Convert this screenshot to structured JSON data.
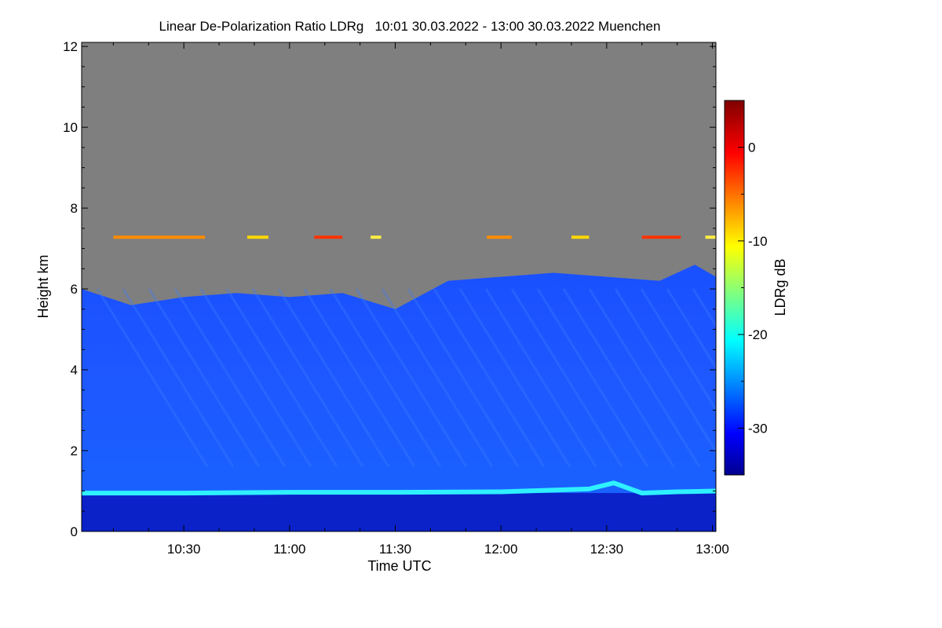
{
  "chart_data": {
    "type": "heatmap",
    "title": "Linear De-Polarization Ratio LDRg   10:01 30.03.2022 - 13:00 30.03.2022 Muenchen",
    "xlabel": "Time UTC",
    "ylabel": "Height km",
    "colorbar_label": "LDRg dB",
    "x_tick_labels": [
      "10:30",
      "11:00",
      "11:30",
      "12:00",
      "12:30",
      "13:00"
    ],
    "x_tick_values_min": [
      630,
      660,
      690,
      720,
      750,
      780
    ],
    "xlim_min": [
      601,
      781
    ],
    "y_ticks": [
      0,
      2,
      4,
      6,
      8,
      10,
      12
    ],
    "ylim": [
      0,
      12.1
    ],
    "colorbar_ticks": [
      0,
      -10,
      -20,
      -30
    ],
    "colorbar_range": [
      -35,
      5
    ],
    "no_data_color": "#7f7f7f",
    "features": {
      "top_of_signal_km": {
        "time_min": [
          601,
          615,
          630,
          645,
          660,
          675,
          690,
          705,
          720,
          735,
          750,
          765,
          775,
          781
        ],
        "height_km": [
          6.0,
          5.6,
          5.8,
          5.9,
          5.8,
          5.9,
          5.5,
          6.2,
          6.3,
          6.4,
          6.3,
          6.2,
          6.6,
          6.3
        ]
      },
      "boundary_layer_top_km": {
        "time_min": [
          601,
          630,
          660,
          690,
          720,
          745,
          752,
          760,
          770,
          781
        ],
        "height_km": [
          0.95,
          0.95,
          0.97,
          0.97,
          0.98,
          1.05,
          1.2,
          0.95,
          0.98,
          1.0
        ]
      },
      "high_ldr_layer_km": 7.28,
      "high_ldr_segments_min": [
        [
          610,
          636
        ],
        [
          648,
          654
        ],
        [
          667,
          675
        ],
        [
          683,
          686
        ],
        [
          716,
          723
        ],
        [
          740,
          745
        ],
        [
          760,
          771
        ],
        [
          778,
          781
        ]
      ]
    },
    "grid": false
  }
}
